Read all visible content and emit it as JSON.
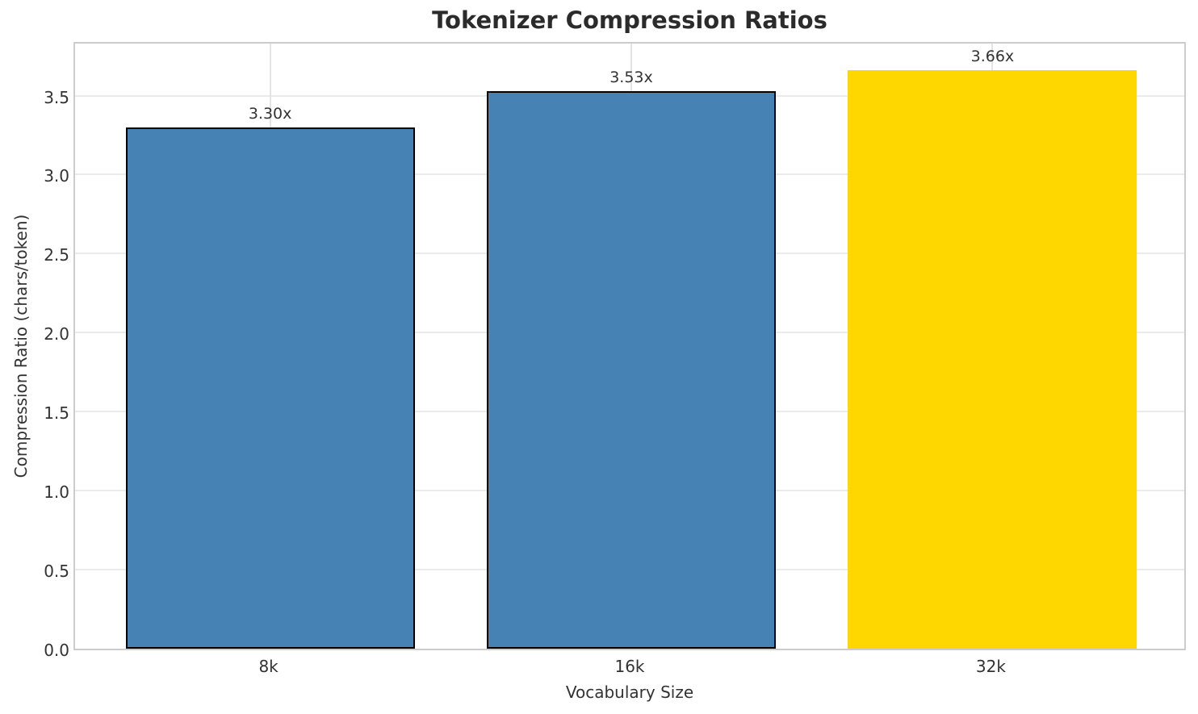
{
  "title": "Tokenizer Compression Ratios",
  "colors": {
    "bar_default": "#4682B4",
    "bar_highlight": "#FFD700",
    "bar_edge": "#000000",
    "spine": "#cccccc",
    "grid": "#ebebeb",
    "text": "#333333",
    "title_text": "#2b2b2b",
    "background": "#ffffff"
  },
  "chart_data": {
    "type": "bar",
    "categories": [
      "8k",
      "16k",
      "32k"
    ],
    "values": [
      3.3,
      3.53,
      3.66
    ],
    "bar_labels": [
      "3.30x",
      "3.53x",
      "3.66x"
    ],
    "bar_colors": [
      "#4682B4",
      "#4682B4",
      "#FFD700"
    ],
    "bar_edge_colors": [
      "#000000",
      "#000000",
      "#FFD700"
    ],
    "title": "Tokenizer Compression Ratios",
    "xlabel": "Vocabulary Size",
    "ylabel": "Compression Ratio (chars/token)",
    "ylim": [
      0,
      3.85
    ],
    "yticks": [
      0.0,
      0.5,
      1.0,
      1.5,
      2.0,
      2.5,
      3.0,
      3.5
    ],
    "ytick_labels": [
      "0.0",
      "0.5",
      "1.0",
      "1.5",
      "2.0",
      "2.5",
      "3.0",
      "3.5"
    ],
    "grid": true,
    "legend": false
  }
}
